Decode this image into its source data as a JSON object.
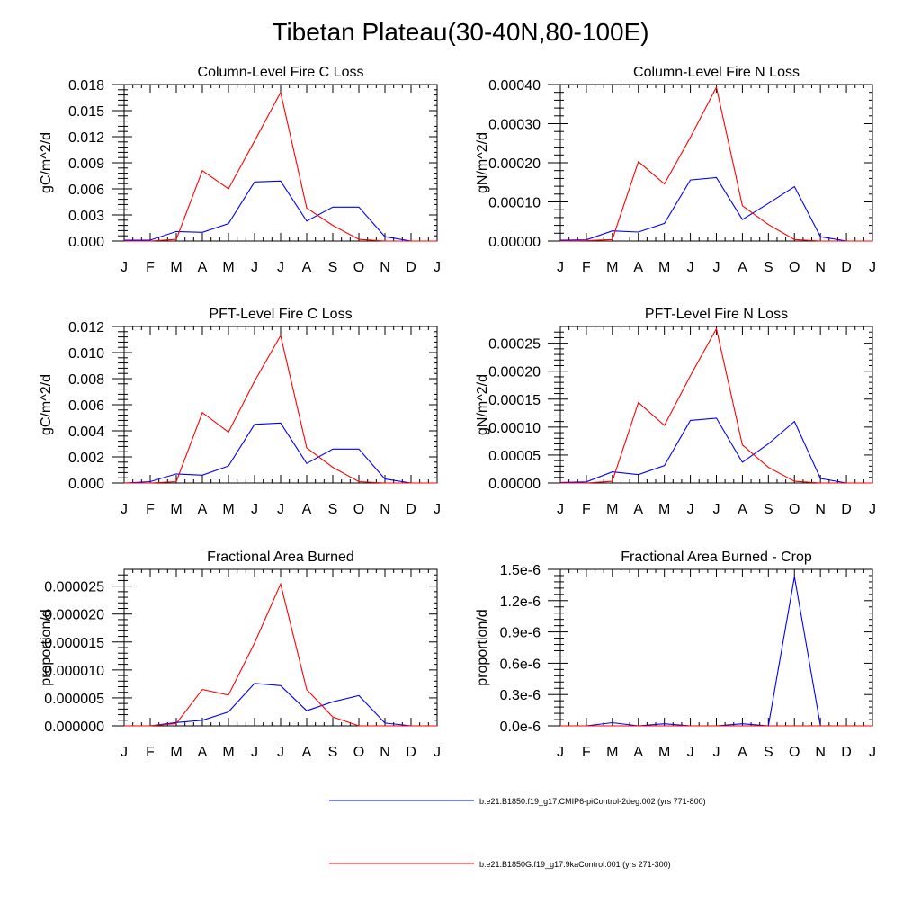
{
  "figure": {
    "title": "Tibetan Plateau(30-40N,80-100E)"
  },
  "legend": [
    {
      "label": "b.e21.B1850.f19_g17.CMIP6-piControl-2deg.002 (yrs 771-800)",
      "color": "#0000ff"
    },
    {
      "label": "b.e21.B1850G.f19_g17.9kaControl.001 (yrs 271-300)",
      "color": "#ff0000"
    }
  ],
  "chart_data": [
    {
      "type": "line",
      "title": "Column-Level Fire C Loss",
      "ylabel": "gC/m^2/d",
      "xlabel": "",
      "x": [
        "J",
        "F",
        "M",
        "A",
        "M",
        "J",
        "J",
        "A",
        "S",
        "O",
        "N",
        "D",
        "J"
      ],
      "ylim": [
        0,
        0.018
      ],
      "yticks": [
        0,
        0.003,
        0.006,
        0.009,
        0.012,
        0.015,
        0.018
      ],
      "ytick_labels": [
        "0.000",
        "0.003",
        "0.006",
        "0.009",
        "0.012",
        "0.015",
        "0.018"
      ],
      "series": [
        {
          "color": "#0000ff",
          "values": [
            0.0001,
            0.0001,
            0.0011,
            0.001,
            0.002,
            0.0068,
            0.0069,
            0.0023,
            0.0039,
            0.0039,
            0.0005,
            0.0,
            0.0
          ]
        },
        {
          "color": "#ff0000",
          "values": [
            0.0,
            0.0,
            0.0002,
            0.0081,
            0.006,
            0.0115,
            0.0171,
            0.0038,
            0.0018,
            0.0002,
            0.0,
            0.0,
            0.0
          ]
        }
      ]
    },
    {
      "type": "line",
      "title": "Column-Level Fire N Loss",
      "ylabel": "gN/m^2/d",
      "xlabel": "",
      "x": [
        "J",
        "F",
        "M",
        "A",
        "M",
        "J",
        "J",
        "A",
        "S",
        "O",
        "N",
        "D",
        "J"
      ],
      "ylim": [
        0,
        0.0004
      ],
      "yticks": [
        0,
        0.0001,
        0.0002,
        0.0003,
        0.0004
      ],
      "ytick_labels": [
        "0.00000",
        "0.00010",
        "0.00020",
        "0.00030",
        "0.00040"
      ],
      "series": [
        {
          "color": "#0000ff",
          "values": [
            2e-06,
            3e-06,
            2.6e-05,
            2.3e-05,
            4.5e-05,
            0.000156,
            0.000162,
            5.5e-05,
            9.6e-05,
            0.000139,
            1.1e-05,
            0.0,
            0.0
          ]
        },
        {
          "color": "#ff0000",
          "values": [
            0.0,
            1e-06,
            4e-06,
            0.000203,
            0.000146,
            0.000265,
            0.000393,
            9e-05,
            4.2e-05,
            4e-06,
            0.0,
            0.0,
            0.0
          ]
        }
      ]
    },
    {
      "type": "line",
      "title": "PFT-Level Fire C Loss",
      "ylabel": "gC/m^2/d",
      "xlabel": "",
      "x": [
        "J",
        "F",
        "M",
        "A",
        "M",
        "J",
        "J",
        "A",
        "S",
        "O",
        "N",
        "D",
        "J"
      ],
      "ylim": [
        0,
        0.012
      ],
      "yticks": [
        0,
        0.002,
        0.004,
        0.006,
        0.008,
        0.01,
        0.012
      ],
      "ytick_labels": [
        "0.000",
        "0.002",
        "0.004",
        "0.006",
        "0.008",
        "0.010",
        "0.012"
      ],
      "series": [
        {
          "color": "#0000ff",
          "values": [
            0.0,
            0.0001,
            0.0007,
            0.0006,
            0.0013,
            0.0045,
            0.0046,
            0.0015,
            0.0026,
            0.0026,
            0.0003,
            0.0,
            0.0
          ]
        },
        {
          "color": "#ff0000",
          "values": [
            0.0,
            0.0,
            0.0001,
            0.0054,
            0.0039,
            0.0078,
            0.0113,
            0.0027,
            0.0012,
            0.0001,
            0.0,
            0.0,
            0.0
          ]
        }
      ]
    },
    {
      "type": "line",
      "title": "PFT-Level Fire N Loss",
      "ylabel": "gN/m^2/d",
      "xlabel": "",
      "x": [
        "J",
        "F",
        "M",
        "A",
        "M",
        "J",
        "J",
        "A",
        "S",
        "O",
        "N",
        "D",
        "J"
      ],
      "ylim": [
        0,
        0.00028
      ],
      "yticks": [
        0,
        5e-05,
        0.0001,
        0.00015,
        0.0002,
        0.00025
      ],
      "ytick_labels": [
        "0.00000",
        "0.00005",
        "0.00010",
        "0.00015",
        "0.00020",
        "0.00025"
      ],
      "series": [
        {
          "color": "#0000ff",
          "values": [
            1e-06,
            2e-06,
            2e-05,
            1.5e-05,
            3.1e-05,
            0.000112,
            0.000116,
            3.7e-05,
            7e-05,
            0.00011,
            8e-06,
            0.0,
            0.0
          ]
        },
        {
          "color": "#ff0000",
          "values": [
            0.0,
            0.0,
            3e-06,
            0.000144,
            0.000103,
            0.000192,
            0.000276,
            6.8e-05,
            2.8e-05,
            3e-06,
            0.0,
            0.0,
            0.0
          ]
        }
      ]
    },
    {
      "type": "line",
      "title": "Fractional Area Burned",
      "ylabel": "proportion/d",
      "xlabel": "",
      "x": [
        "J",
        "F",
        "M",
        "A",
        "M",
        "J",
        "J",
        "A",
        "S",
        "O",
        "N",
        "D",
        "J"
      ],
      "ylim": [
        0,
        2.8e-05
      ],
      "yticks": [
        0,
        5e-06,
        1e-05,
        1.5e-05,
        2e-05,
        2.5e-05
      ],
      "ytick_labels": [
        "0.000000",
        "0.000005",
        "0.000010",
        "0.000015",
        "0.000020",
        "0.000025"
      ],
      "series": [
        {
          "color": "#0000ff",
          "values": [
            0.0,
            0.0,
            6e-07,
            1e-06,
            2.5e-06,
            7.6e-06,
            7.2e-06,
            2.7e-06,
            4.3e-06,
            5.4e-06,
            5e-07,
            0.0,
            0.0
          ]
        },
        {
          "color": "#ff0000",
          "values": [
            0.0,
            0.0,
            4e-07,
            6.5e-06,
            5.5e-06,
            1.48e-05,
            2.54e-05,
            6.5e-06,
            1.6e-06,
            0.0,
            0.0,
            0.0,
            0.0
          ]
        }
      ]
    },
    {
      "type": "line",
      "title": "Fractional Area Burned - Crop",
      "ylabel": "proportion/d",
      "xlabel": "",
      "x": [
        "J",
        "F",
        "M",
        "A",
        "M",
        "J",
        "J",
        "A",
        "S",
        "O",
        "N",
        "D",
        "J"
      ],
      "ylim": [
        0,
        1.5e-06
      ],
      "yticks": [
        0,
        3e-07,
        6e-07,
        9e-07,
        1.2e-06,
        1.5e-06
      ],
      "ytick_labels": [
        "0.0e-6",
        "0.3e-6",
        "0.6e-6",
        "0.9e-6",
        "1.2e-6",
        "1.5e-6"
      ],
      "series": [
        {
          "color": "#0000ff",
          "values": [
            0.0,
            0.0,
            3e-08,
            0.0,
            2e-08,
            0.0,
            0.0,
            2e-08,
            0.0,
            1.43e-06,
            0.0,
            0.0,
            0.0
          ]
        },
        {
          "color": "#ff0000",
          "values": [
            0.0,
            0.0,
            0.0,
            0.0,
            0.0,
            0.0,
            0.0,
            0.0,
            0.0,
            0.0,
            0.0,
            0.0,
            0.0
          ]
        }
      ]
    }
  ]
}
